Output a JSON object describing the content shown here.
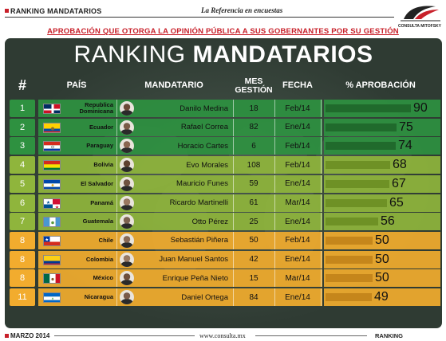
{
  "header": {
    "brand_left": "RANKING MANDATARIOS",
    "tagline": "La Referencia en encuestas",
    "logo_text": "CONSULTA MITOFSKY",
    "subtitle": "APROBACIÓN QUE OTORGA LA OPINIÓN PÚBLICA A SUS GOBERNANTES POR SU GESTIÓN"
  },
  "title": {
    "part1": "RANKING ",
    "part2": "MANDATARIOS"
  },
  "columns": {
    "rank": "#",
    "country": "PAÍS",
    "leader": "MANDATARIO",
    "months_line1": "MES",
    "months_line2": "GESTIÓN",
    "date": "FECHA",
    "approval": "% APROBACIÓN"
  },
  "colors": {
    "panel": "#2f3b33",
    "tier_green": "#2e9140",
    "tier_green_bar": "#206a2c",
    "tier_lime": "#8fb53c",
    "tier_lime_bar": "#6e9125",
    "tier_orange": "#f2ac2e",
    "tier_orange_bar": "#c5861b"
  },
  "chart_data": {
    "type": "bar",
    "orientation": "horizontal",
    "categories": [
      "Republica Dominicana",
      "Ecuador",
      "Paraguay",
      "Bolivia",
      "El Salvador",
      "Panamá",
      "Guatemala",
      "Chile",
      "Colombia",
      "México",
      "Nicaragua"
    ],
    "values": [
      90,
      75,
      74,
      68,
      67,
      65,
      56,
      50,
      50,
      50,
      49
    ],
    "xlim": [
      0,
      100
    ],
    "grid": false,
    "legend": "none"
  },
  "rows": [
    {
      "rank": "1",
      "country": "Republica Dominicana",
      "leader": "Danilo Medina",
      "months": "18",
      "date": "Feb/14",
      "approval": 90,
      "approval_label": "90",
      "tier": "green",
      "flag": "dominican-republic",
      "avatar_color": "#6b4a35"
    },
    {
      "rank": "2",
      "country": "Ecuador",
      "leader": "Rafael Correa",
      "months": "82",
      "date": "Ene/14",
      "approval": 75,
      "approval_label": "75",
      "tier": "green",
      "flag": "ecuador",
      "avatar_color": "#7a5a45"
    },
    {
      "rank": "3",
      "country": "Paraguay",
      "leader": "Horacio Cartes",
      "months": "6",
      "date": "Feb/14",
      "approval": 74,
      "approval_label": "74",
      "tier": "green",
      "flag": "paraguay",
      "avatar_color": "#8a6650"
    },
    {
      "rank": "4",
      "country": "Bolivia",
      "leader": "Evo Morales",
      "months": "108",
      "date": "Feb/14",
      "approval": 68,
      "approval_label": "68",
      "tier": "lime",
      "flag": "bolivia",
      "avatar_color": "#5e4030"
    },
    {
      "rank": "5",
      "country": "El Salvador",
      "leader": "Mauricio Funes",
      "months": "59",
      "date": "Ene/14",
      "approval": 67,
      "approval_label": "67",
      "tier": "lime",
      "flag": "el-salvador",
      "avatar_color": "#6f5240"
    },
    {
      "rank": "6",
      "country": "Panamá",
      "leader": "Ricardo Martinelli",
      "months": "61",
      "date": "Mar/14",
      "approval": 65,
      "approval_label": "65",
      "tier": "lime",
      "flag": "panama",
      "avatar_color": "#9a7860"
    },
    {
      "rank": "7",
      "country": "Guatemala",
      "leader": "Otto Pérez",
      "months": "25",
      "date": "Ene/14",
      "approval": 56,
      "approval_label": "56",
      "tier": "lime",
      "flag": "guatemala",
      "avatar_color": "#7d6350"
    },
    {
      "rank": "8",
      "country": "Chile",
      "leader": "Sebastián Piñera",
      "months": "50",
      "date": "Feb/14",
      "approval": 50,
      "approval_label": "50",
      "tier": "orange",
      "flag": "chile",
      "avatar_color": "#8a6a55"
    },
    {
      "rank": "8",
      "country": "Colombia",
      "leader": "Juan Manuel Santos",
      "months": "42",
      "date": "Ene/14",
      "approval": 50,
      "approval_label": "50",
      "tier": "orange",
      "flag": "colombia",
      "avatar_color": "#9a7a62"
    },
    {
      "rank": "8",
      "country": "México",
      "leader": "Enrique Peña Nieto",
      "months": "15",
      "date": "Mar/14",
      "approval": 50,
      "approval_label": "50",
      "tier": "orange",
      "flag": "mexico",
      "avatar_color": "#6e4f3c"
    },
    {
      "rank": "11",
      "country": "Nicaragua",
      "leader": "Daniel Ortega",
      "months": "84",
      "date": "Ene/14",
      "approval": 49,
      "approval_label": "49",
      "tier": "orange",
      "flag": "nicaragua",
      "avatar_color": "#7a5a48"
    }
  ],
  "footer": {
    "date": "MARZO 2014",
    "url": "www.consulta.mx",
    "brand_right": "RANKING MANDATARIOS"
  }
}
